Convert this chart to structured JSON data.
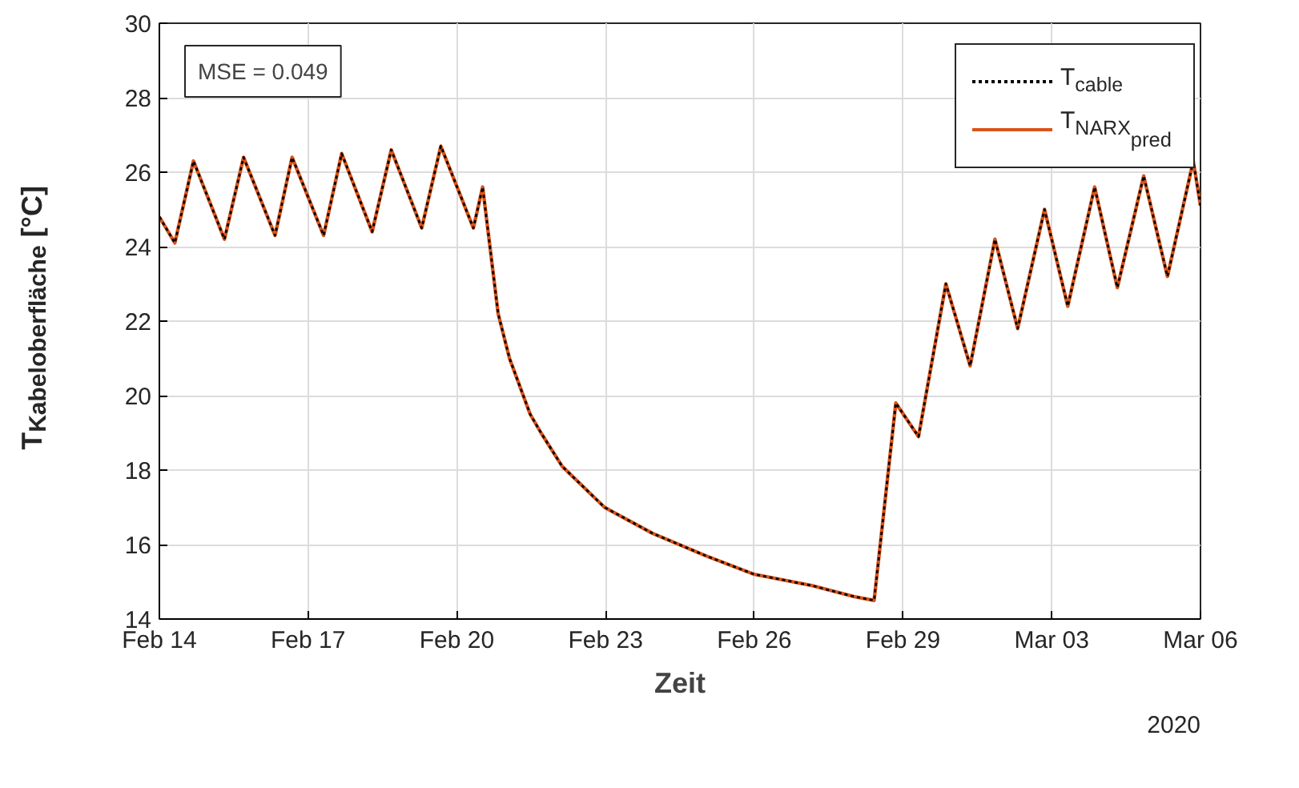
{
  "chart_data": {
    "type": "line",
    "xlabel": "Zeit",
    "ylabel": "T$_{Kabeloberfläche}$ [°C]",
    "annotations": [
      "MSE = 0.049",
      "2020"
    ],
    "x": [
      "2020-02-14T00:00",
      "2020-02-14T07:30",
      "2020-02-14T16:30",
      "2020-02-15T07:30",
      "2020-02-15T16:45",
      "2020-02-16T08:00",
      "2020-02-16T16:15",
      "2020-02-17T07:30",
      "2020-02-17T16:15",
      "2020-02-18T07:00",
      "2020-02-18T16:15",
      "2020-02-19T07:00",
      "2020-02-19T16:15",
      "2020-02-20T08:00",
      "2020-02-20T12:30",
      "2020-02-20T20:00",
      "2020-02-21T01:30",
      "2020-02-21T11:30",
      "2020-02-21T16:45",
      "2020-02-22T03:00",
      "2020-02-22T23:30",
      "2020-02-23T22:45",
      "2020-02-25T00:30",
      "2020-02-26T00:00",
      "2020-02-27T03:45",
      "2020-02-28T00:30",
      "2020-02-28T10:00",
      "2020-02-28T20:30",
      "2020-02-29T07:30",
      "2020-02-29T20:45",
      "2020-03-01T08:30",
      "2020-03-01T20:30",
      "2020-03-02T07:30",
      "2020-03-02T20:30",
      "2020-03-03T07:45",
      "2020-03-03T20:45",
      "2020-03-04T07:45",
      "2020-03-04T20:30",
      "2020-03-05T08:00",
      "2020-03-05T20:30",
      "2020-03-06T00:00"
    ],
    "series": [
      {
        "name": "T$_{cable}$",
        "color": "#000000",
        "line_style": "dotted",
        "values": [
          24.8,
          24.1,
          26.3,
          24.2,
          26.4,
          24.3,
          26.4,
          24.3,
          26.5,
          24.4,
          26.6,
          24.5,
          26.7,
          24.5,
          25.6,
          22.2,
          21.0,
          19.5,
          19.0,
          18.1,
          17.0,
          16.3,
          15.7,
          15.2,
          14.9,
          14.6,
          14.5,
          19.8,
          18.9,
          23.0,
          20.8,
          24.2,
          21.8,
          25.0,
          22.4,
          25.6,
          22.9,
          25.9,
          23.2,
          26.3,
          25.1
        ]
      },
      {
        "name": "T$_{NARX}$$_{pred}$",
        "color": "#d95319",
        "line_style": "solid",
        "values": [
          24.8,
          24.1,
          26.3,
          24.2,
          26.4,
          24.3,
          26.4,
          24.3,
          26.5,
          24.4,
          26.6,
          24.5,
          26.7,
          24.5,
          25.6,
          22.2,
          21.0,
          19.5,
          19.0,
          18.1,
          17.0,
          16.3,
          15.7,
          15.2,
          14.9,
          14.6,
          14.5,
          19.8,
          18.9,
          23.0,
          20.8,
          24.2,
          21.8,
          25.0,
          22.4,
          25.6,
          22.9,
          25.9,
          23.2,
          26.3,
          25.1
        ]
      }
    ],
    "xlim": [
      "2020-02-14",
      "2020-03-06"
    ],
    "xticks": [
      {
        "value": "2020-02-14",
        "label": "Feb 14"
      },
      {
        "value": "2020-02-17",
        "label": "Feb 17"
      },
      {
        "value": "2020-02-20",
        "label": "Feb 20"
      },
      {
        "value": "2020-02-23",
        "label": "Feb 23"
      },
      {
        "value": "2020-02-26",
        "label": "Feb 26"
      },
      {
        "value": "2020-02-29",
        "label": "Feb 29"
      },
      {
        "value": "2020-03-03",
        "label": "Mar 03"
      },
      {
        "value": "2020-03-06",
        "label": "Mar 06"
      }
    ],
    "ylim": [
      14,
      30
    ],
    "yticks": [
      14,
      16,
      18,
      20,
      22,
      24,
      26,
      28,
      30
    ],
    "grid": true,
    "legend": "top right"
  }
}
